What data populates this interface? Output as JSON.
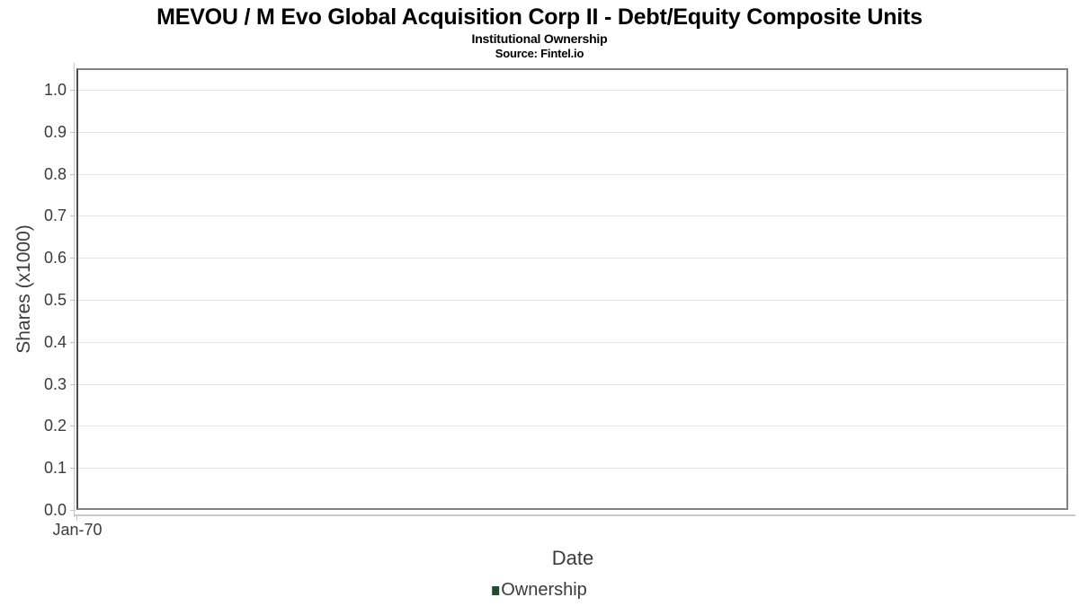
{
  "chart_data": {
    "type": "line",
    "title": "MEVOU / M Evo Global Acquisition Corp II - Debt/Equity Composite Units",
    "subtitle": "Institutional Ownership",
    "source": "Source: Fintel.io",
    "xlabel": "Date",
    "ylabel": "Shares (x1000)",
    "x_ticks": [
      "Jan-70"
    ],
    "y_ticks": [
      "1.0",
      "0.9",
      "0.8",
      "0.7",
      "0.6",
      "0.5",
      "0.4",
      "0.3",
      "0.2",
      "0.1",
      "0.0"
    ],
    "ylim": [
      0.0,
      1.05
    ],
    "grid": true,
    "legend_position": "bottom",
    "series": [
      {
        "name": "Ownership",
        "color": "#1d4f2c",
        "values": []
      }
    ]
  }
}
